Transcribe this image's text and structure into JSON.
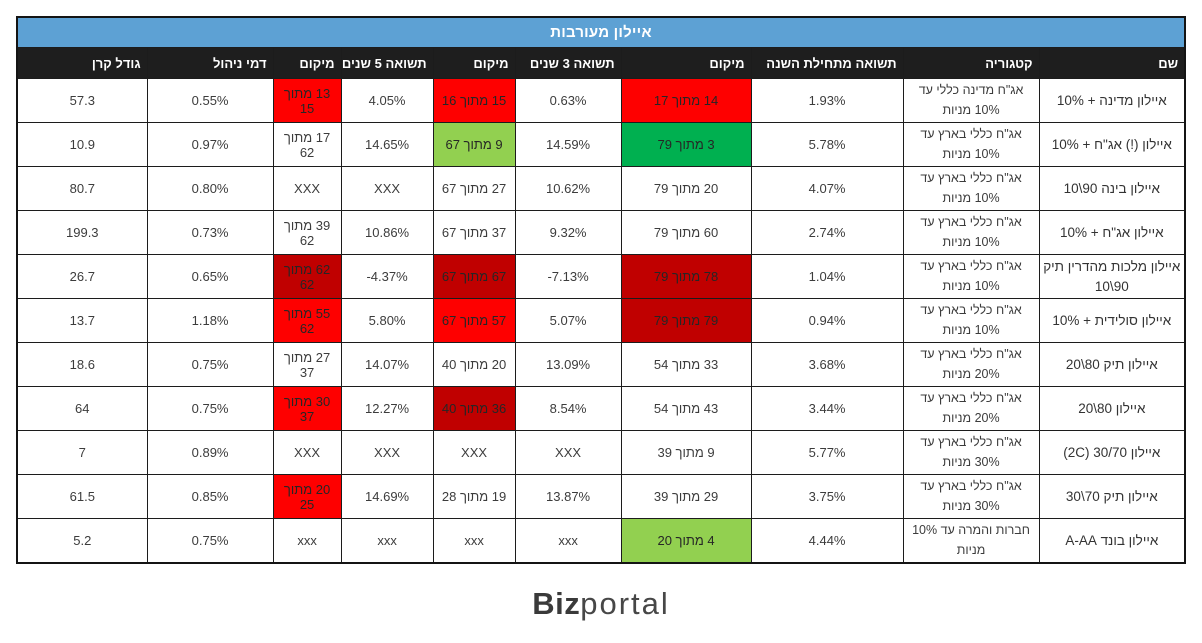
{
  "title": "איילון מעורבות",
  "logo": {
    "bold": "Biz",
    "light": "portal"
  },
  "colors": {
    "red": "#FE0000",
    "darkred": "#C00000",
    "green": "#00B050",
    "lightgreen": "#92D050",
    "title_bg": "#5DA1D4",
    "header_bg": "#1E1E1E"
  },
  "table": {
    "columns": [
      {
        "key": "name",
        "label": "שם"
      },
      {
        "key": "category",
        "label": "קטגוריה"
      },
      {
        "key": "ytd",
        "label": "תשואה מתחילת השנה"
      },
      {
        "key": "rank_ytd",
        "label": "מיקום"
      },
      {
        "key": "y3",
        "label": "תשואה 3 שנים"
      },
      {
        "key": "rank_y3",
        "label": "מיקום"
      },
      {
        "key": "y5",
        "label": "תשואה 5 שנים"
      },
      {
        "key": "rank_y5",
        "label": "מיקום"
      },
      {
        "key": "fee",
        "label": "דמי ניהול"
      },
      {
        "key": "size",
        "label": "גודל קרן"
      }
    ],
    "rows": [
      {
        "cells": {
          "name": "איילון מדינה + 10%",
          "category": "אג\"ח מדינה כללי עד 10% מניות",
          "ytd": "1.93%",
          "rank_ytd": "14 מתוך 17",
          "y3": "0.63%",
          "rank_y3": "15 מתוך 16",
          "y5": "4.05%",
          "rank_y5": "13 מתוך 15",
          "fee": "0.55%",
          "size": "57.3"
        },
        "bg": {
          "rank_ytd": "red",
          "rank_y3": "red",
          "rank_y5": "red"
        }
      },
      {
        "cells": {
          "name": "איילון (!) אג\"ח + 10%",
          "category": "אג\"ח כללי בארץ עד 10% מניות",
          "ytd": "5.78%",
          "rank_ytd": "3 מתוך 79",
          "y3": "14.59%",
          "rank_y3": "9 מתוך 67",
          "y5": "14.65%",
          "rank_y5": "17 מתוך 62",
          "fee": "0.97%",
          "size": "10.9"
        },
        "bg": {
          "rank_ytd": "green",
          "rank_y3": "lightgreen"
        }
      },
      {
        "cells": {
          "name": "איילון בינה 90\\10",
          "category": "אג\"ח כללי בארץ עד 10% מניות",
          "ytd": "4.07%",
          "rank_ytd": "20 מתוך 79",
          "y3": "10.62%",
          "rank_y3": "27 מתוך 67",
          "y5": "XXX",
          "rank_y5": "XXX",
          "fee": "0.80%",
          "size": "80.7"
        },
        "bg": {}
      },
      {
        "cells": {
          "name": "איילון אג\"ח + 10%",
          "category": "אג\"ח כללי בארץ עד 10% מניות",
          "ytd": "2.74%",
          "rank_ytd": "60 מתוך 79",
          "y3": "9.32%",
          "rank_y3": "37 מתוך 67",
          "y5": "10.86%",
          "rank_y5": "39 מתוך 62",
          "fee": "0.73%",
          "size": "199.3"
        },
        "bg": {}
      },
      {
        "cells": {
          "name": "איילון מלכות מהדרין תיק 90\\10",
          "category": "אג\"ח כללי בארץ עד 10% מניות",
          "ytd": "1.04%",
          "rank_ytd": "78 מתוך 79",
          "y3": "-7.13%",
          "rank_y3": "67 מתוך 67",
          "y5": "-4.37%",
          "rank_y5": "62 מתוך 62",
          "fee": "0.65%",
          "size": "26.7"
        },
        "bg": {
          "rank_ytd": "darkred",
          "rank_y3": "darkred",
          "rank_y5": "darkred"
        }
      },
      {
        "cells": {
          "name": "איילון סולידית + 10%",
          "category": "אג\"ח כללי בארץ עד 10% מניות",
          "ytd": "0.94%",
          "rank_ytd": "79 מתוך 79",
          "y3": "5.07%",
          "rank_y3": "57 מתוך 67",
          "y5": "5.80%",
          "rank_y5": "55 מתוך 62",
          "fee": "1.18%",
          "size": "13.7"
        },
        "bg": {
          "rank_ytd": "darkred",
          "rank_y3": "red",
          "rank_y5": "red"
        }
      },
      {
        "cells": {
          "name": "איילון תיק 80\\20",
          "category": "אג\"ח כללי בארץ עד 20% מניות",
          "ytd": "3.68%",
          "rank_ytd": "33 מתוך 54",
          "y3": "13.09%",
          "rank_y3": "20 מתוך 40",
          "y5": "14.07%",
          "rank_y5": "27 מתוך 37",
          "fee": "0.75%",
          "size": "18.6"
        },
        "bg": {}
      },
      {
        "cells": {
          "name": "איילון 80\\20",
          "category": "אג\"ח כללי בארץ עד 20% מניות",
          "ytd": "3.44%",
          "rank_ytd": "43 מתוך 54",
          "y3": "8.54%",
          "rank_y3": "36 מתוך 40",
          "y5": "12.27%",
          "rank_y5": "30 מתוך 37",
          "fee": "0.75%",
          "size": "64"
        },
        "bg": {
          "rank_y3": "darkred",
          "rank_y5": "red"
        }
      },
      {
        "cells": {
          "name": "איילון 30/70 (2C)",
          "category": "אג\"ח כללי בארץ עד 30% מניות",
          "ytd": "5.77%",
          "rank_ytd": "9 מתוך 39",
          "y3": "XXX",
          "rank_y3": "XXX",
          "y5": "XXX",
          "rank_y5": "XXX",
          "fee": "0.89%",
          "size": "7"
        },
        "bg": {}
      },
      {
        "cells": {
          "name": "איילון תיק 70\\30",
          "category": "אג\"ח כללי בארץ עד 30% מניות",
          "ytd": "3.75%",
          "rank_ytd": "29 מתוך 39",
          "y3": "13.87%",
          "rank_y3": "19 מתוך 28",
          "y5": "14.69%",
          "rank_y5": "20 מתוך 25",
          "fee": "0.85%",
          "size": "61.5"
        },
        "bg": {
          "rank_y5": "red"
        }
      },
      {
        "cells": {
          "name": "איילון בונד A-AA",
          "category": "חברות והמרה עד 10% מניות",
          "ytd": "4.44%",
          "rank_ytd": "4 מתוך 20",
          "y3": "xxx",
          "rank_y3": "xxx",
          "y5": "xxx",
          "rank_y5": "xxx",
          "fee": "0.75%",
          "size": "5.2"
        },
        "bg": {
          "rank_ytd": "lightgreen"
        }
      }
    ]
  }
}
